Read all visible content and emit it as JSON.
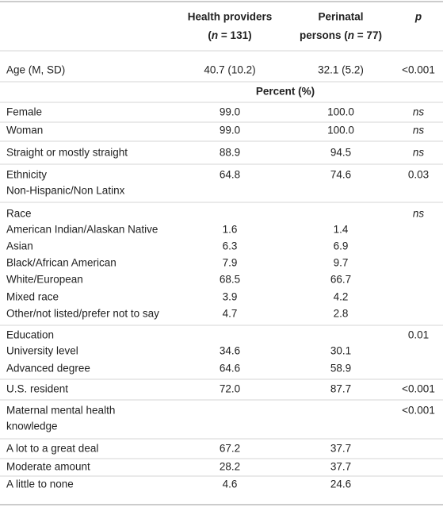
{
  "table": {
    "header": [
      {
        "line1": "Health providers",
        "line2": [
          "(",
          "n",
          " = 131)"
        ]
      },
      {
        "line1": "Perinatal",
        "line2": [
          "persons (",
          "n",
          " = 77)"
        ]
      },
      {
        "line1": "p"
      }
    ],
    "subheader": "Percent (%)",
    "rows": [
      {
        "label": [
          "Age (M, SD)"
        ],
        "cells": [
          "40.7 (10.2)",
          "32.1 (5.2)",
          "<0.001"
        ]
      },
      {
        "label": [
          "Female"
        ],
        "cells": [
          "99.0",
          "100.0",
          "ns"
        ]
      },
      {
        "label": [
          "Woman"
        ],
        "cells": [
          "99.0",
          "100.0",
          "ns"
        ]
      },
      {
        "label": [
          "Straight or mostly straight"
        ],
        "cells": [
          "88.9",
          "94.5",
          "ns"
        ]
      },
      {
        "label": [
          "Ethnicity",
          "Non-Hispanic/Non Latinx"
        ],
        "cells": [
          "64.8",
          "74.6",
          "0.03"
        ]
      },
      {
        "label": [
          "Race"
        ],
        "cells": [
          null,
          null,
          "ns"
        ]
      },
      {
        "label": [
          "American Indian/Alaskan Native"
        ],
        "cells": [
          "1.6",
          "1.4",
          null
        ]
      },
      {
        "label": [
          "Asian"
        ],
        "cells": [
          "6.3",
          "6.9",
          null
        ]
      },
      {
        "label": [
          "Black/African American"
        ],
        "cells": [
          "7.9",
          "9.7",
          null
        ]
      },
      {
        "label": [
          "White/European"
        ],
        "cells": [
          "68.5",
          "66.7",
          null
        ]
      },
      {
        "label": [
          "Mixed race"
        ],
        "cells": [
          "3.9",
          "4.2",
          null
        ]
      },
      {
        "label": [
          "Other/not listed/prefer not to say"
        ],
        "cells": [
          "4.7",
          "2.8",
          null
        ]
      },
      {
        "label": [
          "Education"
        ],
        "cells": [
          null,
          null,
          "0.01"
        ]
      },
      {
        "label": [
          "University level"
        ],
        "cells": [
          "34.6",
          "30.1",
          null
        ]
      },
      {
        "label": [
          "Advanced degree"
        ],
        "cells": [
          "64.6",
          "58.9",
          null
        ]
      },
      {
        "label": [
          "U.S. resident"
        ],
        "cells": [
          "72.0",
          "87.7",
          "<0.001"
        ]
      },
      {
        "label": [
          "Maternal mental health",
          "knowledge"
        ],
        "cells": [
          null,
          null,
          "<0.001"
        ]
      },
      {
        "label": [
          "A lot to a great deal"
        ],
        "cells": [
          "67.2",
          "37.7",
          null
        ]
      },
      {
        "label": [
          "Moderate amount"
        ],
        "cells": [
          "28.2",
          "37.7",
          null
        ]
      },
      {
        "label": [
          "A little to none"
        ],
        "cells": [
          "4.6",
          "24.6",
          null
        ]
      }
    ]
  }
}
